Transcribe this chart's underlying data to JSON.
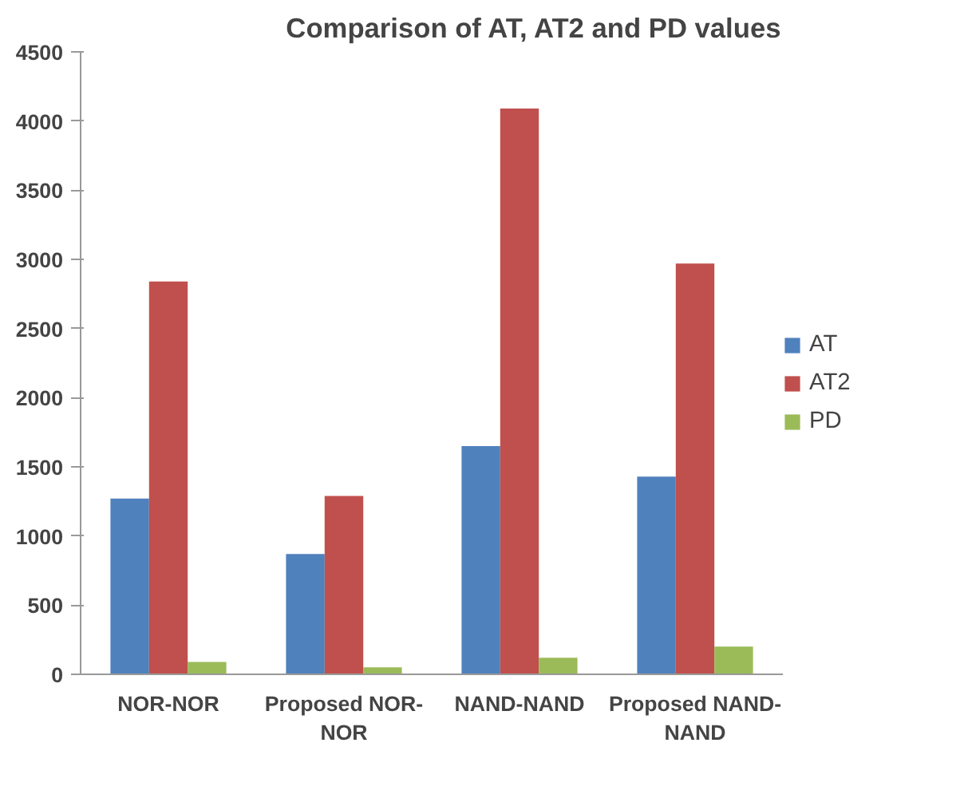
{
  "chart_data": {
    "type": "bar",
    "title": "Comparison of AT, AT2 and PD values",
    "categories": [
      "NOR-NOR",
      "Proposed NOR-NOR",
      "NAND-NAND",
      "Proposed NAND-NAND"
    ],
    "series": [
      {
        "name": "AT",
        "color": "#4f81bd",
        "values": [
          1270,
          870,
          1650,
          1430
        ]
      },
      {
        "name": "AT2",
        "color": "#c0504d",
        "values": [
          2840,
          1290,
          4090,
          2970
        ]
      },
      {
        "name": "PD",
        "color": "#9bbb59",
        "values": [
          90,
          50,
          120,
          200
        ]
      }
    ],
    "ylim": [
      0,
      4500
    ],
    "yticks": [
      0,
      500,
      1000,
      1500,
      2000,
      2500,
      3000,
      3500,
      4000,
      4500
    ],
    "grid": false,
    "legend": "right"
  }
}
